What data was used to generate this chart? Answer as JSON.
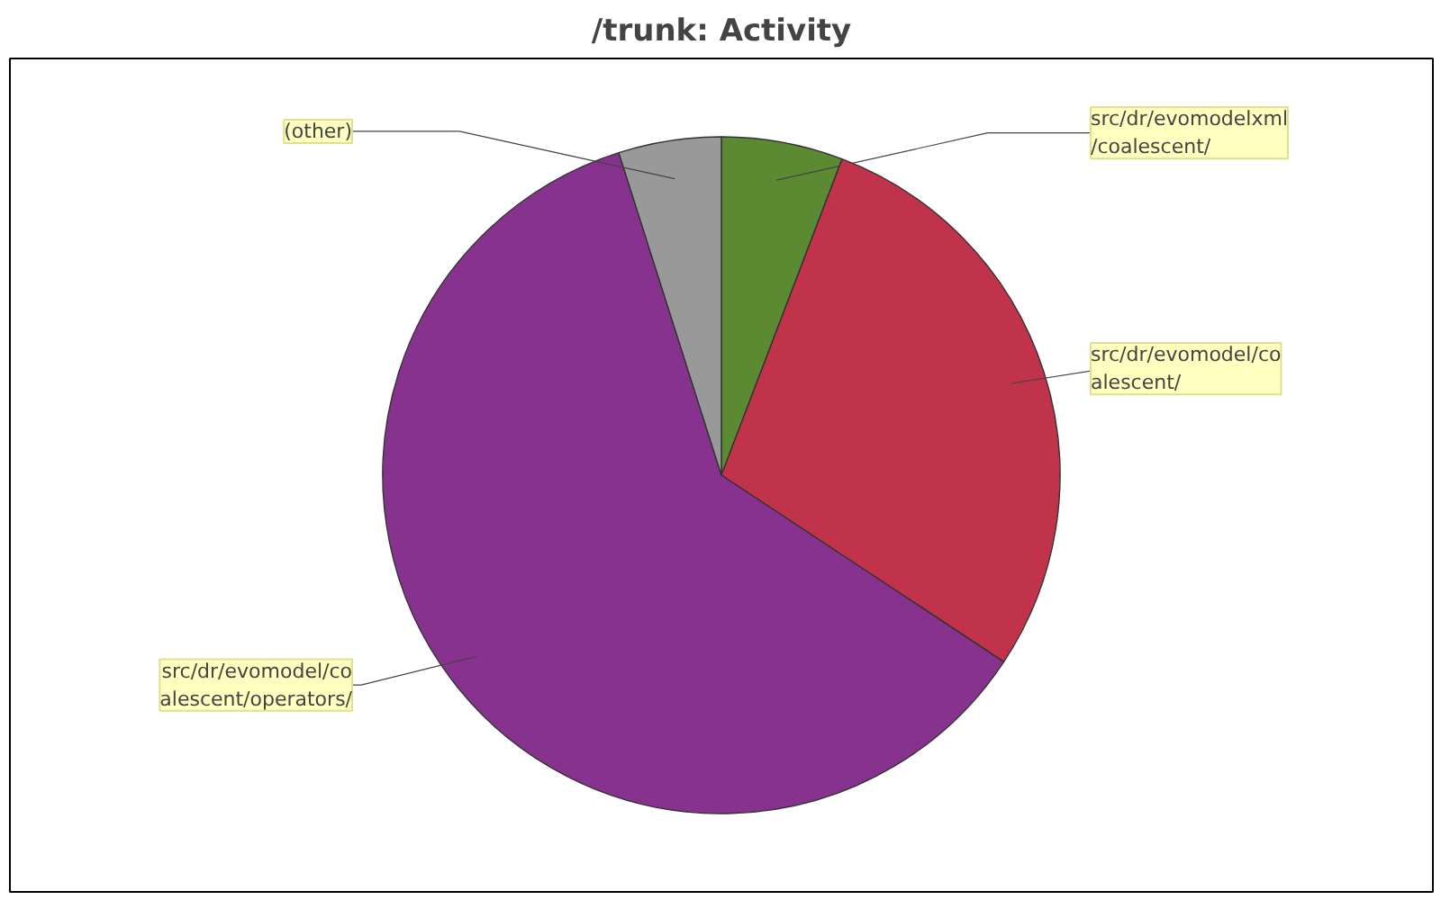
{
  "chart_data": {
    "type": "pie",
    "title": "/trunk: Activity",
    "categories": [
      "src/dr/evomodelxml\n/coalescent/",
      "src/dr/evomodel/co\nalescent/",
      "src/dr/evomodel/co\nalescent/operators/",
      "(other)"
    ],
    "values": [
      5.8,
      28.5,
      60.8,
      4.9
    ],
    "colors": [
      "#5b8a32",
      "#c0334b",
      "#88328f",
      "#999999"
    ]
  }
}
